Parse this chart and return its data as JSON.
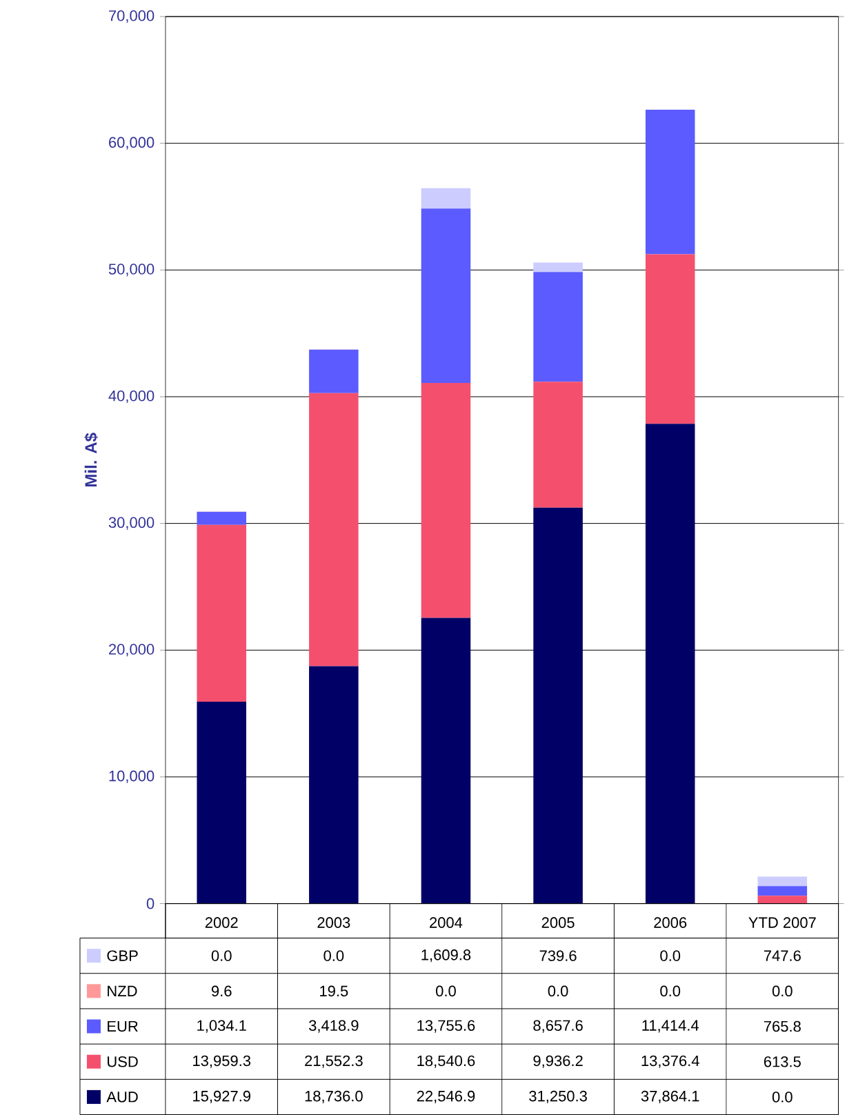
{
  "chart_data": {
    "type": "bar",
    "stacked": true,
    "ylabel": "Mil. A$",
    "categories": [
      "2002",
      "2003",
      "2004",
      "2005",
      "2006",
      "YTD 2007"
    ],
    "series": [
      {
        "name": "AUD",
        "color": "#000066",
        "values": [
          15927.9,
          18736.0,
          22546.9,
          31250.3,
          37864.1,
          0.0
        ],
        "value_labels": [
          "15,927.9",
          "18,736.0",
          "22,546.9",
          "31,250.3",
          "37,864.1",
          "0.0"
        ]
      },
      {
        "name": "USD",
        "color": "#f4506e",
        "values": [
          13959.3,
          21552.3,
          18540.6,
          9936.2,
          13376.4,
          613.5
        ],
        "value_labels": [
          "13,959.3",
          "21,552.3",
          "18,540.6",
          "9,936.2",
          "13,376.4",
          "613.5"
        ]
      },
      {
        "name": "EUR",
        "color": "#5b5bff",
        "values": [
          1034.1,
          3418.9,
          13755.6,
          8657.6,
          11414.4,
          765.8
        ],
        "value_labels": [
          "1,034.1",
          "3,418.9",
          "13,755.6",
          "8,657.6",
          "11,414.4",
          "765.8"
        ]
      },
      {
        "name": "NZD",
        "color": "#ff9999",
        "values": [
          9.6,
          19.5,
          0.0,
          0.0,
          0.0,
          0.0
        ],
        "value_labels": [
          "9.6",
          "19.5",
          "0.0",
          "0.0",
          "0.0",
          "0.0"
        ]
      },
      {
        "name": "GBP",
        "color": "#ccccff",
        "values": [
          0.0,
          0.0,
          1609.8,
          739.6,
          0.0,
          747.6
        ],
        "value_labels": [
          "0.0",
          "0.0",
          "1,609.8",
          "739.6",
          "0.0",
          "747.6"
        ]
      }
    ],
    "ylim": [
      0,
      70000
    ],
    "yticks": [
      {
        "value": 0,
        "label": "0"
      },
      {
        "value": 10000,
        "label": "10,000"
      },
      {
        "value": 20000,
        "label": "20,000"
      },
      {
        "value": 30000,
        "label": "30,000"
      },
      {
        "value": 40000,
        "label": "40,000"
      },
      {
        "value": 50000,
        "label": "50,000"
      },
      {
        "value": 60000,
        "label": "60,000"
      },
      {
        "value": 70000,
        "label": "70,000"
      }
    ],
    "grid": "y",
    "legend": "bottom left"
  }
}
